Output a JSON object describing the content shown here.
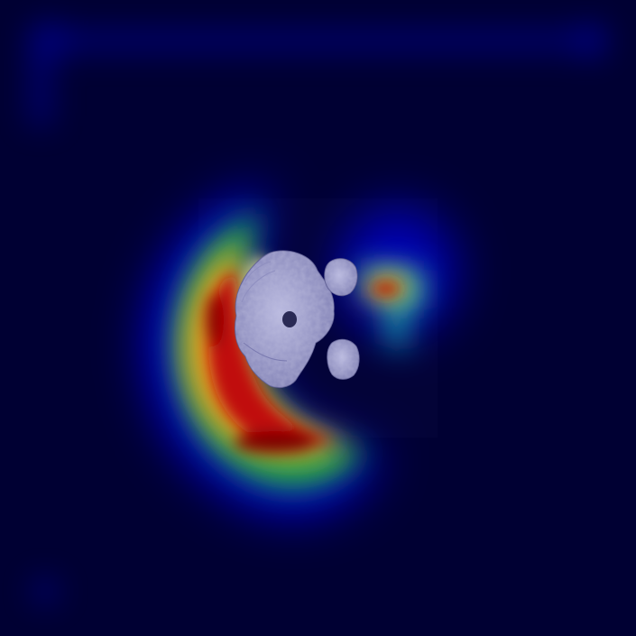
{
  "image": {
    "kind": "attention-heatmap-overlay",
    "colormap": "jet",
    "colors": {
      "background": "#000033",
      "low": "#00007a",
      "mid": "#1fa34a",
      "high": "#f0c020",
      "peak": "#7a0000",
      "object": "#c8c8e8"
    },
    "objects": [
      "large-rock-fragment",
      "small-rock-fragment-top",
      "small-rock-fragment-bottom"
    ]
  }
}
